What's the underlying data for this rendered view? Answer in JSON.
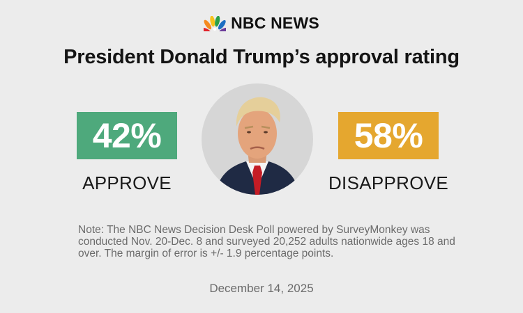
{
  "header": {
    "brand": "NBC NEWS",
    "logo_icon": "nbc-peacock-icon"
  },
  "chart_data": {
    "type": "bar",
    "title": "President Donald Trump’s approval rating",
    "categories": [
      "APPROVE",
      "DISAPPROVE"
    ],
    "values": [
      42,
      58
    ],
    "value_labels": [
      "42%",
      "58%"
    ],
    "unit": "%",
    "colors": [
      "#4ea97c",
      "#e5a72f"
    ]
  },
  "portrait": {
    "icon": "portrait-icon"
  },
  "footer": {
    "note": "Note: The NBC News Decision Desk Poll powered by SurveyMonkey was conducted Nov. 20-Dec. 8 and surveyed 20,252 adults nationwide ages 18 and over. The margin of error is +/- 1.9 percentage points.",
    "date": "December 14, 2025"
  }
}
